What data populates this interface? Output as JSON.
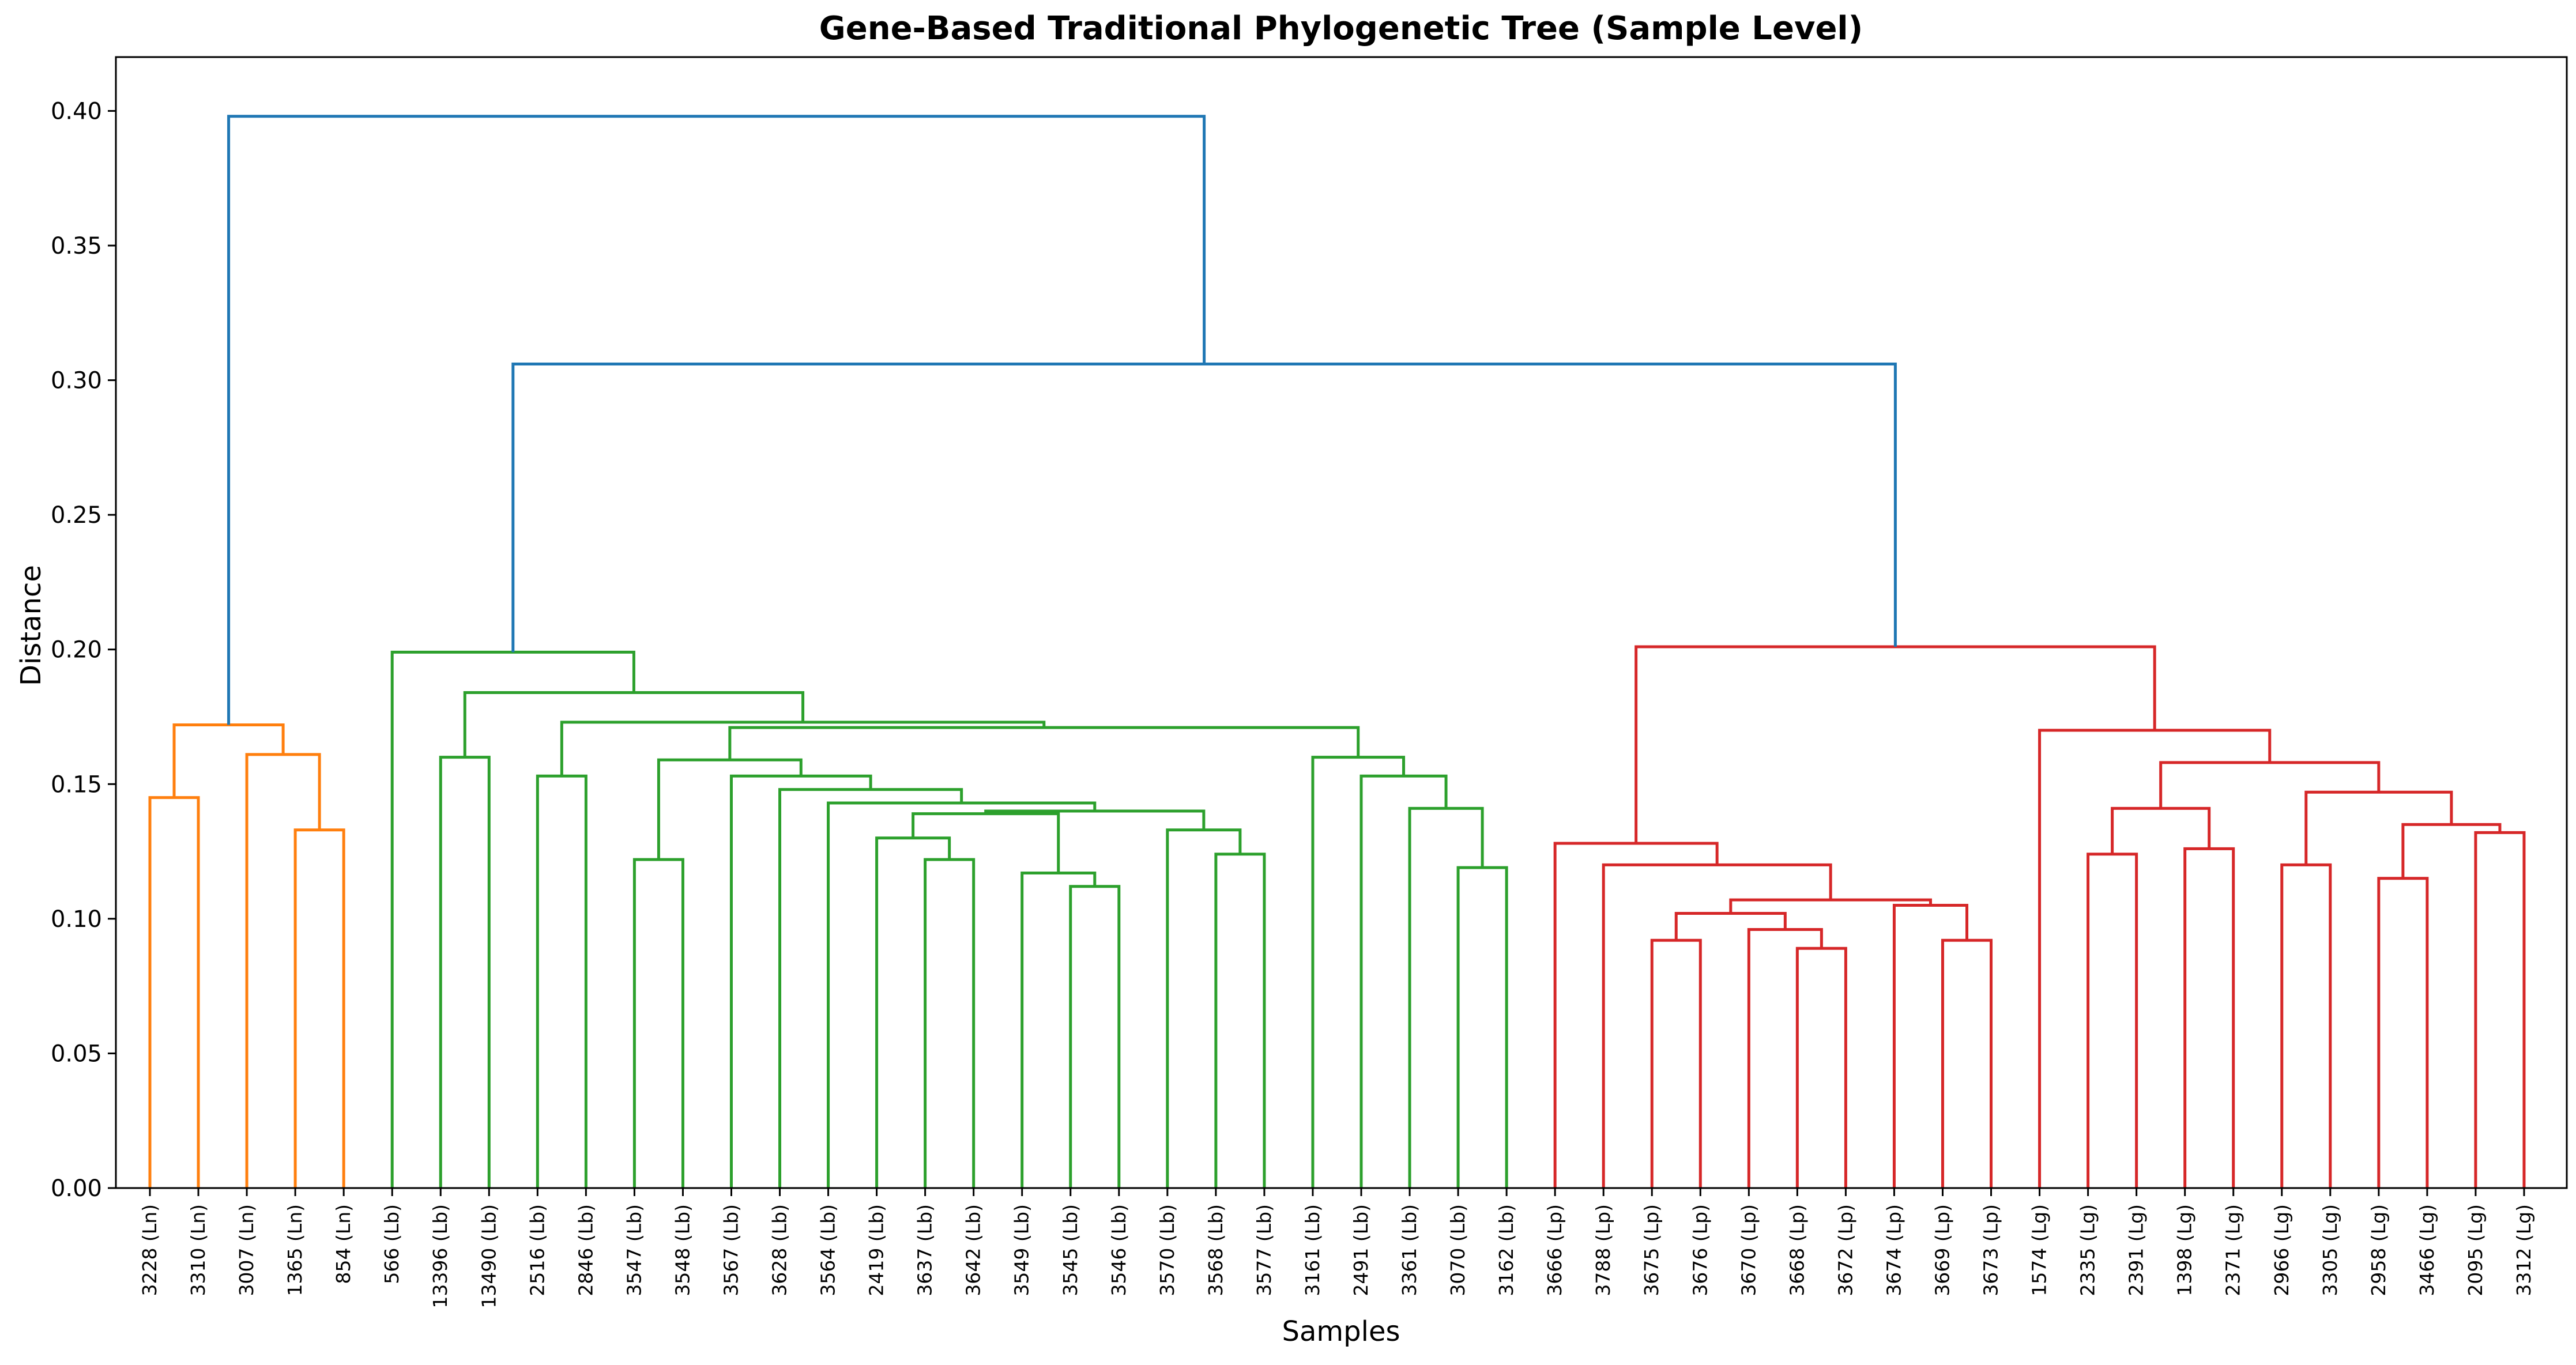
{
  "chart_data": {
    "type": "dendrogram",
    "title": "Gene-Based Traditional Phylogenetic Tree (Sample Level)",
    "xlabel": "Samples",
    "ylabel": "Distance",
    "ylim": [
      0,
      0.42
    ],
    "yticks": [
      "0.00",
      "0.05",
      "0.10",
      "0.15",
      "0.20",
      "0.25",
      "0.30",
      "0.35",
      "0.40"
    ],
    "grid": false,
    "legend": "none",
    "colors": {
      "Ln": "#ff7f0e",
      "Lb": "#2ca02c",
      "Lp_Lg": "#d62728",
      "root": "#1f77b4"
    },
    "leaves": [
      "3228 (Ln)",
      "3310 (Ln)",
      "3007 (Ln)",
      "1365 (Ln)",
      "854 (Ln)",
      "566 (Lb)",
      "13396 (Lb)",
      "13490 (Lb)",
      "2516 (Lb)",
      "2846 (Lb)",
      "3547 (Lb)",
      "3548 (Lb)",
      "3567 (Lb)",
      "3628 (Lb)",
      "3564 (Lb)",
      "2419 (Lb)",
      "3637 (Lb)",
      "3642 (Lb)",
      "3549 (Lb)",
      "3545 (Lb)",
      "3546 (Lb)",
      "3570 (Lb)",
      "3568 (Lb)",
      "3577 (Lb)",
      "3161 (Lb)",
      "2491 (Lb)",
      "3361 (Lb)",
      "3070 (Lb)",
      "3162 (Lb)",
      "3666 (Lp)",
      "3788 (Lp)",
      "3675 (Lp)",
      "3676 (Lp)",
      "3670 (Lp)",
      "3668 (Lp)",
      "3672 (Lp)",
      "3674 (Lp)",
      "3669 (Lp)",
      "3673 (Lp)",
      "1574 (Lg)",
      "2335 (Lg)",
      "2391 (Lg)",
      "1398 (Lg)",
      "2371 (Lg)",
      "2966 (Lg)",
      "3305 (Lg)",
      "2958 (Lg)",
      "3466 (Lg)",
      "2095 (Lg)",
      "3312 (Lg)"
    ],
    "tree": {
      "h": 0.398,
      "c": "root",
      "ch": [
        {
          "h": 0.172,
          "c": "Ln",
          "ch": [
            {
              "h": 0.145,
              "c": "Ln",
              "ch": [
                0,
                1
              ]
            },
            {
              "h": 0.161,
              "c": "Ln",
              "ch": [
                2,
                {
                  "h": 0.133,
                  "c": "Ln",
                  "ch": [
                    3,
                    4
                  ]
                }
              ]
            }
          ]
        },
        {
          "h": 0.306,
          "c": "root",
          "ch": [
            {
              "h": 0.199,
              "c": "Lb",
              "ch": [
                5,
                {
                  "h": 0.184,
                  "c": "Lb",
                  "ch": [
                    {
                      "h": 0.16,
                      "c": "Lb",
                      "ch": [
                        6,
                        7
                      ]
                    },
                    {
                      "h": 0.173,
                      "c": "Lb",
                      "ch": [
                        {
                          "h": 0.153,
                          "c": "Lb",
                          "ch": [
                            8,
                            9
                          ]
                        },
                        {
                          "h": 0.171,
                          "c": "Lb",
                          "ch": [
                            {
                              "h": 0.159,
                              "c": "Lb",
                              "ch": [
                                {
                                  "h": 0.122,
                                  "c": "Lb",
                                  "ch": [
                                    10,
                                    11
                                  ]
                                },
                                {
                                  "h": 0.153,
                                  "c": "Lb",
                                  "ch": [
                                    12,
                                    {
                                      "h": 0.148,
                                      "c": "Lb",
                                      "ch": [
                                        13,
                                        {
                                          "h": 0.143,
                                          "c": "Lb",
                                          "ch": [
                                            14,
                                            {
                                              "h": 0.14,
                                              "c": "Lb",
                                              "ch": [
                                                {
                                                  "h": 0.139,
                                                  "c": "Lb",
                                                  "ch": [
                                                    {
                                                      "h": 0.13,
                                                      "c": "Lb",
                                                      "ch": [
                                                        15,
                                                        {
                                                          "h": 0.122,
                                                          "c": "Lb",
                                                          "ch": [
                                                            16,
                                                            17
                                                          ]
                                                        }
                                                      ]
                                                    },
                                                    {
                                                      "h": 0.117,
                                                      "c": "Lb",
                                                      "ch": [
                                                        18,
                                                        {
                                                          "h": 0.112,
                                                          "c": "Lb",
                                                          "ch": [
                                                            19,
                                                            20
                                                          ]
                                                        }
                                                      ]
                                                    }
                                                  ]
                                                },
                                                {
                                                  "h": 0.133,
                                                  "c": "Lb",
                                                  "ch": [
                                                    21,
                                                    {
                                                      "h": 0.124,
                                                      "c": "Lb",
                                                      "ch": [
                                                        22,
                                                        23
                                                      ]
                                                    }
                                                  ]
                                                }
                                              ]
                                            }
                                          ]
                                        }
                                      ]
                                    }
                                  ]
                                }
                              ]
                            },
                            {
                              "h": 0.16,
                              "c": "Lb",
                              "ch": [
                                24,
                                {
                                  "h": 0.153,
                                  "c": "Lb",
                                  "ch": [
                                    25,
                                    {
                                      "h": 0.141,
                                      "c": "Lb",
                                      "ch": [
                                        26,
                                        {
                                          "h": 0.119,
                                          "c": "Lb",
                                          "ch": [
                                            27,
                                            28
                                          ]
                                        }
                                      ]
                                    }
                                  ]
                                }
                              ]
                            }
                          ]
                        }
                      ]
                    }
                  ]
                }
              ]
            },
            {
              "h": 0.201,
              "c": "Lp_Lg",
              "ch": [
                {
                  "h": 0.128,
                  "c": "Lp_Lg",
                  "ch": [
                    29,
                    {
                      "h": 0.12,
                      "c": "Lp_Lg",
                      "ch": [
                        30,
                        {
                          "h": 0.107,
                          "c": "Lp_Lg",
                          "ch": [
                            {
                              "h": 0.102,
                              "c": "Lp_Lg",
                              "ch": [
                                {
                                  "h": 0.092,
                                  "c": "Lp_Lg",
                                  "ch": [
                                    31,
                                    32
                                  ]
                                },
                                {
                                  "h": 0.096,
                                  "c": "Lp_Lg",
                                  "ch": [
                                    33,
                                    {
                                      "h": 0.089,
                                      "c": "Lp_Lg",
                                      "ch": [
                                        34,
                                        35
                                      ]
                                    }
                                  ]
                                }
                              ]
                            },
                            {
                              "h": 0.105,
                              "c": "Lp_Lg",
                              "ch": [
                                36,
                                {
                                  "h": 0.092,
                                  "c": "Lp_Lg",
                                  "ch": [
                                    37,
                                    38
                                  ]
                                }
                              ]
                            }
                          ]
                        }
                      ]
                    }
                  ]
                },
                {
                  "h": 0.17,
                  "c": "Lp_Lg",
                  "ch": [
                    39,
                    {
                      "h": 0.158,
                      "c": "Lp_Lg",
                      "ch": [
                        {
                          "h": 0.141,
                          "c": "Lp_Lg",
                          "ch": [
                            {
                              "h": 0.124,
                              "c": "Lp_Lg",
                              "ch": [
                                40,
                                41
                              ]
                            },
                            {
                              "h": 0.126,
                              "c": "Lp_Lg",
                              "ch": [
                                42,
                                43
                              ]
                            }
                          ]
                        },
                        {
                          "h": 0.147,
                          "c": "Lp_Lg",
                          "ch": [
                            {
                              "h": 0.12,
                              "c": "Lp_Lg",
                              "ch": [
                                44,
                                45
                              ]
                            },
                            {
                              "h": 0.135,
                              "c": "Lp_Lg",
                              "ch": [
                                {
                                  "h": 0.115,
                                  "c": "Lp_Lg",
                                  "ch": [
                                    46,
                                    47
                                  ]
                                },
                                {
                                  "h": 0.132,
                                  "c": "Lp_Lg",
                                  "ch": [
                                    48,
                                    49
                                  ]
                                }
                              ]
                            }
                          ]
                        }
                      ]
                    }
                  ]
                }
              ]
            }
          ]
        }
      ]
    }
  }
}
